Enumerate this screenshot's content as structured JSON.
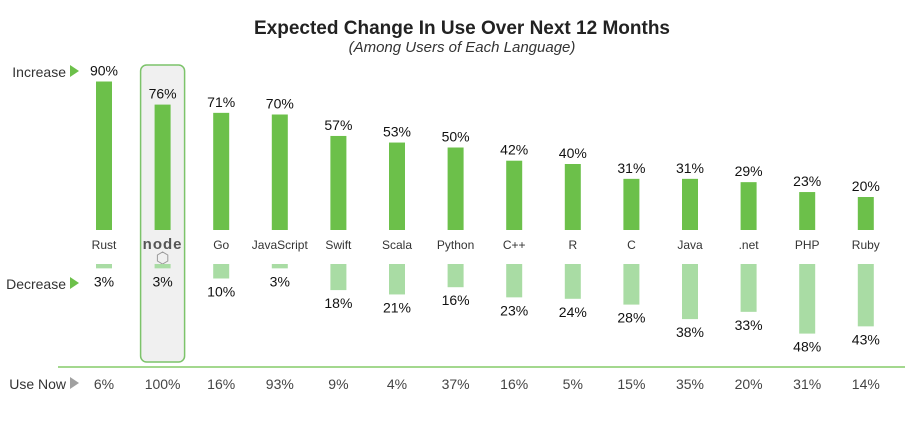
{
  "chart_data": {
    "type": "bar",
    "title": "Expected Change In Use Over Next 12 Months",
    "subtitle": "(Among Users of Each Language)",
    "row_labels": {
      "increase": "Increase",
      "decrease": "Decrease",
      "use_now": "Use Now"
    },
    "categories": [
      "Rust",
      "node",
      "Go",
      "JavaScript",
      "Swift",
      "Scala",
      "Python",
      "C++",
      "R",
      "C",
      "Java",
      ".net",
      "PHP",
      "Ruby"
    ],
    "highlighted_category": "node",
    "series": [
      {
        "name": "Increase",
        "values": [
          90,
          76,
          71,
          70,
          57,
          53,
          50,
          42,
          40,
          31,
          31,
          29,
          23,
          20
        ],
        "labels": [
          "90%",
          "76%",
          "71%",
          "70%",
          "57%",
          "53%",
          "50%",
          "42%",
          "40%",
          "31%",
          "31%",
          "29%",
          "23%",
          "20%"
        ]
      },
      {
        "name": "Decrease",
        "values": [
          3,
          3,
          10,
          3,
          18,
          21,
          16,
          23,
          24,
          28,
          38,
          33,
          48,
          43
        ],
        "labels": [
          "3%",
          "3%",
          "10%",
          "3%",
          "18%",
          "21%",
          "16%",
          "23%",
          "24%",
          "28%",
          "38%",
          "33%",
          "48%",
          "43%"
        ]
      }
    ],
    "use_now": [
      "6%",
      "100%",
      "16%",
      "93%",
      "9%",
      "4%",
      "37%",
      "16%",
      "5%",
      "15%",
      "35%",
      "20%",
      "31%",
      "14%"
    ],
    "colors": {
      "increase": "#6cc04a",
      "decrease": "#a9dca4",
      "arrow_green": "#6cc04a",
      "arrow_gray": "#a0a0a0",
      "highlight_border": "#7cc36a",
      "highlight_fill": "#f0f0f0",
      "baseline": "#6cc04a"
    },
    "legend": "none",
    "grid": false
  }
}
